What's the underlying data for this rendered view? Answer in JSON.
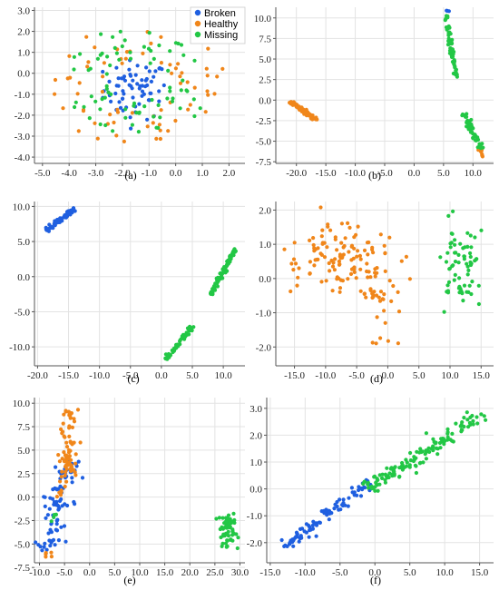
{
  "figure": {
    "legend": {
      "entries": [
        {
          "label": "Broken",
          "color": "#1f5fe0"
        },
        {
          "label": "Healthy",
          "color": "#f0861a"
        },
        {
          "label": "Missing",
          "color": "#22c745"
        }
      ]
    }
  },
  "chart_data": [
    {
      "type": "scatter",
      "panel_label": "(a)",
      "xlim": [
        -5.3,
        2.6
      ],
      "ylim": [
        -4.3,
        3.15
      ],
      "xticks": [
        -5.0,
        -4.0,
        -3.0,
        -2.0,
        -1.0,
        0.0,
        1.0,
        2.0
      ],
      "yticks": [
        -4.0,
        -3.0,
        -2.0,
        -1.0,
        0.0,
        1.0,
        2.0,
        3.0
      ],
      "xtick_labels": [
        "-5.0",
        "-4.0",
        "-3.0",
        "-2.0",
        "-1.0",
        "0.0",
        "1.0",
        "2.0"
      ],
      "ytick_labels": [
        "-4.0",
        "-3.0",
        "-2.0",
        "-1.0",
        "0.0",
        "1.0",
        "2.0",
        "3.0"
      ],
      "legend": "top-right",
      "grid": true,
      "series": [
        {
          "name": "Broken",
          "color": "#1f5fe0",
          "clusters": [
            {
              "c": [
                -1.5,
                -0.8
              ],
              "s": [
                0.6,
                0.7
              ],
              "n": 70
            }
          ]
        },
        {
          "name": "Healthy",
          "color": "#f0861a",
          "clusters": [
            {
              "c": [
                -1.4,
                -0.6
              ],
              "ring": [
                1.2,
                3.0
              ],
              "n": 70
            }
          ]
        },
        {
          "name": "Missing",
          "color": "#22c745",
          "clusters": [
            {
              "c": [
                -1.5,
                -0.4
              ],
              "ring": [
                1.0,
                2.6
              ],
              "n": 80
            }
          ]
        }
      ]
    },
    {
      "type": "scatter",
      "panel_label": "(b)",
      "xlim": [
        -23.5,
        13.5
      ],
      "ylim": [
        -7.7,
        11.3
      ],
      "xticks": [
        -20.0,
        -15.0,
        -10.0,
        -5.0,
        0.0,
        5.0,
        10.0
      ],
      "yticks": [
        -7.5,
        -5.0,
        -2.5,
        0.0,
        2.5,
        5.0,
        7.5,
        10.0
      ],
      "xtick_labels": [
        "-20.0",
        "-15.0",
        "-10.0",
        "-5.0",
        "0.0",
        "5.0",
        "10.0"
      ],
      "ytick_labels": [
        "-7.5",
        "-5.0",
        "-2.5",
        "0.0",
        "2.5",
        "5.0",
        "7.5",
        "10.0"
      ],
      "grid": true,
      "series": [
        {
          "name": "Broken",
          "color": "#1f5fe0",
          "clusters": [
            {
              "line": [
                [
                  5.3,
                  10.8
                ],
                [
                  6.0,
                  10.8
                ]
              ],
              "w": 0.08,
              "n": 3
            }
          ]
        },
        {
          "name": "Healthy",
          "color": "#f0861a",
          "clusters": [
            {
              "line": [
                [
                  -21.0,
                  -0.2
                ],
                [
                  -16.5,
                  -2.4
                ]
              ],
              "w": 0.12,
              "n": 60
            },
            {
              "line": [
                [
                  11.2,
                  -6.0
                ],
                [
                  11.8,
                  -7.0
                ]
              ],
              "w": 0.08,
              "n": 10
            }
          ]
        },
        {
          "name": "Missing",
          "color": "#22c745",
          "clusters": [
            {
              "line": [
                [
                  5.3,
                  10.3
                ],
                [
                  7.2,
                  2.8
                ]
              ],
              "w": 0.1,
              "n": 70
            },
            {
              "line": [
                [
                  8.3,
                  -1.5
                ],
                [
                  11.5,
                  -6.0
                ]
              ],
              "w": 0.12,
              "n": 60
            }
          ]
        }
      ]
    },
    {
      "type": "scatter",
      "panel_label": "(c)",
      "xlim": [
        -20.5,
        13.5
      ],
      "ylim": [
        -12.7,
        10.7
      ],
      "xticks": [
        -20.0,
        -15.0,
        -10.0,
        -5.0,
        0.0,
        5.0,
        10.0
      ],
      "yticks": [
        -10.0,
        -5.0,
        0.0,
        5.0,
        10.0
      ],
      "xtick_labels": [
        "-20.0",
        "-15.0",
        "-10.0",
        "-5.0",
        "0.0",
        "5.0",
        "10.0"
      ],
      "ytick_labels": [
        "-10.0",
        "-5.0",
        "0.0",
        "5.0",
        "10.0"
      ],
      "grid": true,
      "series": [
        {
          "name": "Broken",
          "color": "#1f5fe0",
          "clusters": [
            {
              "line": [
                [
                  -18.5,
                  6.6
                ],
                [
                  -14.0,
                  9.7
                ]
              ],
              "w": 0.12,
              "n": 70
            }
          ]
        },
        {
          "name": "Healthy",
          "color": "#f0861a",
          "clusters": []
        },
        {
          "name": "Missing",
          "color": "#22c745",
          "clusters": [
            {
              "line": [
                [
                  0.8,
                  -11.8
                ],
                [
                  5.0,
                  -7.0
                ]
              ],
              "w": 0.12,
              "n": 60
            },
            {
              "line": [
                [
                  8.0,
                  -2.5
                ],
                [
                  12.0,
                  4.0
                ]
              ],
              "w": 0.1,
              "n": 70
            }
          ]
        }
      ]
    },
    {
      "type": "scatter",
      "panel_label": "(d)",
      "xlim": [
        -18.0,
        17.0
      ],
      "ylim": [
        -2.55,
        2.25
      ],
      "xticks": [
        -15.0,
        -10.0,
        -5.0,
        0.0,
        5.0,
        10.0,
        15.0
      ],
      "yticks": [
        -2.0,
        -1.0,
        0.0,
        1.0,
        2.0
      ],
      "xtick_labels": [
        "-15.0",
        "-10.0",
        "-5.0",
        "0.0",
        "5.0",
        "10.0",
        "15.0"
      ],
      "ytick_labels": [
        "-2.0",
        "-1.0",
        "0.0",
        "1.0",
        "2.0"
      ],
      "grid": true,
      "series": [
        {
          "name": "Broken",
          "color": "#1f5fe0",
          "clusters": []
        },
        {
          "name": "Healthy",
          "color": "#f0861a",
          "clusters": [
            {
              "c": [
                -9.0,
                0.6
              ],
              "s": [
                4.5,
                0.55
              ],
              "n": 110
            },
            {
              "c": [
                -1.5,
                -0.5
              ],
              "s": [
                1.6,
                0.7
              ],
              "n": 45
            }
          ]
        },
        {
          "name": "Missing",
          "color": "#22c745",
          "clusters": [
            {
              "c": [
                12.0,
                0.3
              ],
              "s": [
                1.7,
                0.6
              ],
              "n": 70
            }
          ]
        }
      ]
    },
    {
      "type": "scatter",
      "panel_label": "(e)",
      "xlim": [
        -11.0,
        31.0
      ],
      "ylim": [
        -7.0,
        10.6
      ],
      "xticks": [
        -10.0,
        -5.0,
        0.0,
        5.0,
        10.0,
        15.0,
        20.0,
        25.0,
        30.0
      ],
      "yticks": [
        -7.5,
        -5.0,
        -2.5,
        0.0,
        2.5,
        5.0,
        7.5,
        10.0
      ],
      "xtick_labels": [
        "-10.0",
        "-5.0",
        "0.0",
        "5.0",
        "10.0",
        "15.0",
        "20.0",
        "25.0",
        "30.0"
      ],
      "ytick_labels": [
        "-7.5",
        "-5.0",
        "-2.5",
        "0.0",
        "2.5",
        "5.0",
        "7.5",
        "10.0"
      ],
      "grid": true,
      "series": [
        {
          "name": "Broken",
          "color": "#1f5fe0",
          "clusters": [
            {
              "line": [
                [
                  -9.0,
                  -6.0
                ],
                [
                  -6.5,
                  0.0
                ]
              ],
              "w": 0.6,
              "n": 55
            },
            {
              "line": [
                [
                  -6.5,
                  0.5
                ],
                [
                  -3.5,
                  4.0
                ]
              ],
              "w": 0.5,
              "n": 30
            }
          ]
        },
        {
          "name": "Healthy",
          "color": "#f0861a",
          "clusters": [
            {
              "line": [
                [
                  -4.5,
                  2.0
                ],
                [
                  -3.8,
                  9.5
                ]
              ],
              "w": 0.4,
              "n": 70
            },
            {
              "line": [
                [
                  -6.0,
                  0.0
                ],
                [
                  -4.8,
                  4.5
                ]
              ],
              "w": 0.3,
              "n": 12
            },
            {
              "c": [
                -8.0,
                -6.3
              ],
              "s": [
                0.5,
                0.3
              ],
              "n": 5
            }
          ]
        },
        {
          "name": "Missing",
          "color": "#22c745",
          "clusters": [
            {
              "c": [
                27.5,
                -3.5
              ],
              "s": [
                1.0,
                0.9
              ],
              "n": 60
            },
            {
              "c": [
                -7.0,
                -2.0
              ],
              "s": [
                0.4,
                0.6
              ],
              "n": 4
            }
          ]
        }
      ]
    },
    {
      "type": "scatter",
      "panel_label": "(f)",
      "xlim": [
        -15.5,
        17.0
      ],
      "ylim": [
        -2.75,
        3.4
      ],
      "xticks": [
        -15.0,
        -10.0,
        -5.0,
        0.0,
        5.0,
        10.0,
        15.0
      ],
      "yticks": [
        -2.0,
        -1.0,
        0.0,
        1.0,
        2.0,
        3.0
      ],
      "xtick_labels": [
        "-15.0",
        "-10.0",
        "-5.0",
        "0.0",
        "5.0",
        "10.0",
        "15.0"
      ],
      "ytick_labels": [
        "-2.0",
        "-1.0",
        "0.0",
        "1.0",
        "2.0",
        "3.0"
      ],
      "grid": true,
      "series": [
        {
          "name": "Broken",
          "color": "#1f5fe0",
          "clusters": [
            {
              "line": [
                [
                  -13.0,
                  -2.2
                ],
                [
                  -1.0,
                  0.3
                ]
              ],
              "w": 0.35,
              "n": 90
            }
          ]
        },
        {
          "name": "Healthy",
          "color": "#f0861a",
          "clusters": []
        },
        {
          "name": "Missing",
          "color": "#22c745",
          "clusters": [
            {
              "line": [
                [
                  -1.0,
                  0.0
                ],
                [
                  15.5,
                  2.8
                ]
              ],
              "w": 0.45,
              "n": 140
            }
          ]
        }
      ]
    }
  ]
}
